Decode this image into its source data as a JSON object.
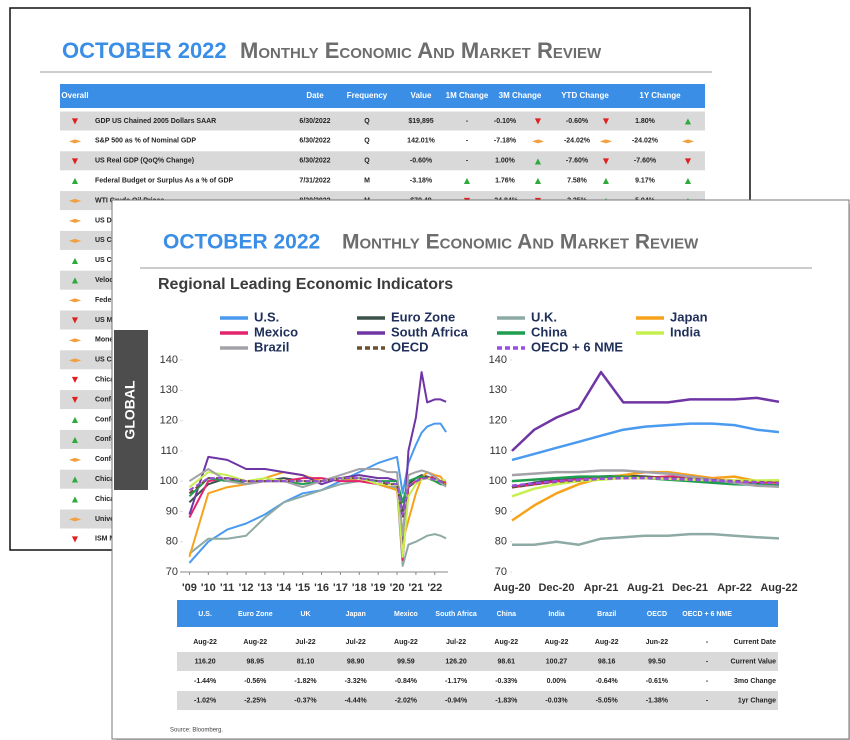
{
  "back_slide": {
    "title": "OCTOBER 2022",
    "subtitle": "Monthly Economic And Market Review",
    "arrow_colors": {
      "▲": "#2eaa3c",
      "▼": "#e02020",
      "◄►": "#f0a040"
    },
    "header": [
      "Overall",
      "Date",
      "Frequency",
      "Value",
      "1M Change",
      "3M Change",
      "YTD Change",
      "1Y Change"
    ],
    "rows": [
      {
        "overall": "▼",
        "name": "GDP US Chained 2005 Dollars SAAR",
        "date": "6/30/2022",
        "frequency": "Q",
        "value": "$19,895",
        "m1": "-",
        "m3": "-0.10%",
        "m3_arrow": "▼",
        "ytd": "-0.60%",
        "ytd_arrow": "▼",
        "y1": "1.80%",
        "y1_arrow": "▲"
      },
      {
        "overall": "◄►",
        "name": "S&P 500 as % of Nominal GDP",
        "date": "6/30/2022",
        "frequency": "Q",
        "value": "142.01%",
        "m1": "-",
        "m3": "-7.18%",
        "m3_arrow": "◄►",
        "ytd": "-24.02%",
        "ytd_arrow": "◄►",
        "y1": "-24.02%",
        "y1_arrow": "◄►"
      },
      {
        "overall": "▼",
        "name": "US Real GDP (QoQ% Change)",
        "date": "6/30/2022",
        "frequency": "Q",
        "value": "-0.60%",
        "m1": "-",
        "m3": "1.00%",
        "m3_arrow": "▲",
        "ytd": "-7.60%",
        "ytd_arrow": "▼",
        "y1": "-7.60%",
        "y1_arrow": "▼"
      },
      {
        "overall": "▲",
        "name": "Federal Budget or Surplus As a % of GDP",
        "date": "7/31/2022",
        "frequency": "M",
        "value": "-3.18%",
        "m1": "▲",
        "m3": "1.76%",
        "m3_arrow": "▲",
        "ytd": "7.58%",
        "ytd_arrow": "▲",
        "y1": "9.17%",
        "y1_arrow": "▲"
      },
      {
        "overall": "◄►",
        "name": "WTI Crude Oil Prices",
        "date": "8/30/2022",
        "frequency": "M",
        "value": "$79.49",
        "m1": "▼",
        "m3": "-24.84%",
        "m3_arrow": "▼",
        "ytd": "3.25%",
        "ytd_arrow": "▲",
        "y1": "5.94%",
        "y1_arrow": "▲"
      },
      {
        "overall": "◄►",
        "name": "US DO"
      },
      {
        "overall": "◄►",
        "name": "US CP"
      },
      {
        "overall": "▲",
        "name": "US CP"
      },
      {
        "overall": "▲",
        "name": "Velocit"
      },
      {
        "overall": "◄►",
        "name": "Federa"
      },
      {
        "overall": "▼",
        "name": "US Mo"
      },
      {
        "overall": "◄►",
        "name": "Money"
      },
      {
        "overall": "◄►",
        "name": "US Ca"
      },
      {
        "overall": "▼",
        "name": "Chicag"
      },
      {
        "overall": "▼",
        "name": "Confe"
      },
      {
        "overall": "▲",
        "name": "Confe"
      },
      {
        "overall": "▲",
        "name": "Confe"
      },
      {
        "overall": "◄►",
        "name": "Confe"
      },
      {
        "overall": "▲",
        "name": "Chicag"
      },
      {
        "overall": "▲",
        "name": "Chicag"
      },
      {
        "overall": "◄►",
        "name": "Univer"
      },
      {
        "overall": "▼",
        "name": "ISM M"
      }
    ]
  },
  "tab": "GLOBAL",
  "front_slide": {
    "title": "OCTOBER 2022",
    "subtitle": "Monthly Economic And Market Review",
    "section_title": "Regional Leading Economic Indicators",
    "table": {
      "header": [
        "U.S.",
        "Euro Zone",
        "UK",
        "Japan",
        "Mexico",
        "South Africa",
        "China",
        "India",
        "Brazil",
        "OECD",
        "OECD + 6 NME"
      ],
      "rows": [
        {
          "cells": [
            "Aug-22",
            "Aug-22",
            "Jul-22",
            "Jul-22",
            "Aug-22",
            "Jul-22",
            "Aug-22",
            "Aug-22",
            "Aug-22",
            "Jun-22",
            "-"
          ],
          "label": "Current Date"
        },
        {
          "cells": [
            "116.20",
            "98.95",
            "81.10",
            "98.90",
            "99.59",
            "126.20",
            "98.61",
            "100.27",
            "98.16",
            "99.50",
            "-"
          ],
          "label": "Current Value"
        },
        {
          "cells": [
            "-1.44%",
            "-0.56%",
            "-1.82%",
            "-3.32%",
            "-0.84%",
            "-1.17%",
            "-0.33%",
            "0.00%",
            "-0.64%",
            "-0.61%",
            "-"
          ],
          "label": "3mo Change"
        },
        {
          "cells": [
            "-1.02%",
            "-2.25%",
            "-0.37%",
            "-4.44%",
            "-2.02%",
            "-0.94%",
            "-1.83%",
            "-0.03%",
            "-5.05%",
            "-1.38%",
            "-"
          ],
          "label": "1yr Change"
        }
      ]
    },
    "source": "Source: Bloomberg."
  },
  "chart_data": [
    {
      "type": "line",
      "x": [
        2009,
        2010,
        2011,
        2012,
        2013,
        2014,
        2015,
        2016,
        2017,
        2018,
        2019,
        2019.5,
        2020,
        2020.3,
        2020.6,
        2021,
        2021.3,
        2021.6,
        2022,
        2022.3,
        2022.6
      ],
      "xlim": [
        2008.5,
        2022.7
      ],
      "xticks": [
        {
          "value": 2009,
          "label": "'09"
        },
        {
          "value": 2010,
          "label": "'10"
        },
        {
          "value": 2011,
          "label": "'11"
        },
        {
          "value": 2012,
          "label": "'12"
        },
        {
          "value": 2013,
          "label": "'13"
        },
        {
          "value": 2014,
          "label": "'14"
        },
        {
          "value": 2015,
          "label": "'15"
        },
        {
          "value": 2016,
          "label": "'16"
        },
        {
          "value": 2017,
          "label": "'17"
        },
        {
          "value": 2018,
          "label": "'18"
        },
        {
          "value": 2019,
          "label": "'19"
        },
        {
          "value": 2020,
          "label": "'20"
        },
        {
          "value": 2021,
          "label": "'21"
        },
        {
          "value": 2022,
          "label": "'22"
        }
      ],
      "ylim": [
        70,
        140
      ],
      "yticks": [
        70,
        80,
        90,
        100,
        110,
        120,
        130,
        140
      ],
      "series": [
        {
          "name": "U.S.",
          "color": "#4a9af0",
          "values": [
            73,
            80,
            84,
            86,
            89,
            93,
            96,
            97,
            100,
            103,
            106,
            107,
            108,
            96,
            106,
            112,
            116,
            118,
            119,
            119,
            116.2
          ]
        },
        {
          "name": "Euro Zone",
          "color": "#3a5249",
          "values": [
            93,
            99,
            101,
            99,
            100,
            101,
            100,
            100,
            101,
            101,
            99,
            98,
            98,
            90,
            99,
            101,
            102,
            101.5,
            100.5,
            99.5,
            98.95
          ]
        },
        {
          "name": "U.K.",
          "color": "#8eaaa4",
          "values": [
            76,
            81,
            81,
            82,
            88,
            93,
            95,
            97,
            99,
            100,
            99,
            98,
            98,
            72,
            79,
            80,
            81,
            82,
            82.5,
            82,
            81.1
          ]
        },
        {
          "name": "Japan",
          "color": "#f7a21b",
          "values": [
            75,
            96,
            98,
            99,
            101,
            103,
            102,
            100,
            101,
            100,
            99,
            98,
            97,
            80,
            87,
            96,
            101,
            103,
            102,
            101.5,
            98.9
          ]
        },
        {
          "name": "Mexico",
          "color": "#e3256f",
          "values": [
            88,
            100,
            101,
            100,
            100,
            100,
            101,
            101,
            100,
            100,
            99,
            99,
            99,
            74,
            98,
            100,
            101,
            101,
            101.5,
            100,
            99.59
          ]
        },
        {
          "name": "South Africa",
          "color": "#6f35a5",
          "values": [
            89,
            108,
            107,
            104,
            104,
            103,
            102,
            99,
            101,
            102,
            101,
            101,
            100,
            78,
            110,
            121,
            136,
            126,
            127,
            127,
            126.2
          ]
        },
        {
          "name": "China",
          "color": "#1e9e4e",
          "values": [
            95,
            101,
            100,
            100,
            100,
            100,
            99,
            100,
            101,
            101,
            100,
            100,
            100,
            93,
            100,
            101,
            101.5,
            101,
            100,
            99,
            98.61
          ]
        },
        {
          "name": "India",
          "color": "#c6ef4f",
          "values": [
            98,
            103,
            102,
            100,
            101,
            100,
            100,
            100,
            101,
            101,
            99,
            99,
            99,
            75,
            95,
            99,
            100.5,
            101,
            100.5,
            100.2,
            100.27
          ]
        },
        {
          "name": "Brazil",
          "color": "#a3a2a8",
          "values": [
            100,
            104,
            100,
            99,
            100,
            100,
            98,
            100,
            102,
            104,
            104,
            103,
            103,
            82,
            102,
            103,
            103.5,
            103,
            101.5,
            99.5,
            98.16
          ]
        },
        {
          "name": "OECD",
          "color": "#6b5030",
          "dash": true,
          "values": [
            96,
            101,
            101,
            100,
            100,
            100,
            100,
            100,
            101,
            101,
            100,
            99,
            99,
            88,
            98,
            99.8,
            100.8,
            101.2,
            100.7,
            100,
            99.5
          ]
        },
        {
          "name": "OECD + 6 NME",
          "color": "#9a4fe0",
          "dash": true,
          "values": [
            97,
            101,
            101,
            100,
            100,
            100,
            100,
            100,
            101,
            101,
            100,
            99.5,
            99,
            89,
            98.5,
            100,
            100.8,
            101,
            100.5,
            99.8,
            99.3
          ]
        }
      ]
    },
    {
      "type": "line",
      "categories": [
        "Aug-20",
        null,
        "Dec-20",
        null,
        "Apr-21",
        null,
        "Aug-21",
        null,
        "Dec-21",
        null,
        "Apr-22",
        null,
        "Aug-22"
      ],
      "ylim": [
        70,
        140
      ],
      "yticks": [
        70,
        80,
        90,
        100,
        110,
        120,
        130,
        140
      ],
      "series": [
        {
          "color": "#4a9af0",
          "values": [
            107,
            109,
            111,
            113,
            115,
            117,
            118,
            118.5,
            119,
            119,
            118.5,
            117,
            116.2
          ]
        },
        {
          "color": "#3a5249",
          "values": [
            98,
            99.5,
            100.5,
            101,
            101.5,
            101.8,
            101.5,
            101,
            100.5,
            100,
            99.5,
            99.2,
            98.95
          ]
        },
        {
          "color": "#8eaaa4",
          "values": [
            79,
            79,
            80,
            79,
            81,
            81.5,
            82,
            82,
            82.5,
            82.5,
            82,
            81.5,
            81.1
          ]
        },
        {
          "color": "#f7a21b",
          "values": [
            87,
            92,
            96,
            99,
            101,
            102,
            103,
            103,
            102,
            101,
            101.5,
            100,
            98.9
          ]
        },
        {
          "color": "#e3256f",
          "values": [
            98,
            99,
            100,
            100.5,
            101,
            101,
            101,
            101.5,
            101.5,
            100.5,
            100,
            99.8,
            99.59
          ]
        },
        {
          "color": "#6f35a5",
          "values": [
            110,
            117,
            121,
            124,
            136,
            126,
            126,
            126,
            127,
            127,
            127,
            127.5,
            126.2
          ]
        },
        {
          "color": "#1e9e4e",
          "values": [
            100,
            100.5,
            101,
            101.5,
            101.5,
            101.5,
            101,
            100.5,
            100,
            99.5,
            99,
            98.8,
            98.61
          ]
        },
        {
          "color": "#c6ef4f",
          "values": [
            95,
            97.5,
            99,
            100,
            100.5,
            101,
            101,
            100.8,
            100.5,
            100.3,
            100.2,
            100.2,
            100.27
          ]
        },
        {
          "color": "#a3a2a8",
          "values": [
            102,
            102.5,
            103,
            103,
            103.5,
            103.5,
            103,
            102.5,
            101.5,
            100.5,
            99.5,
            98.5,
            98.16
          ]
        },
        {
          "color": "#6b5030",
          "dash": true,
          "values": [
            98,
            99,
            99.8,
            100.3,
            100.8,
            101,
            101.2,
            101,
            100.7,
            100.3,
            100,
            99.7,
            99.5
          ]
        },
        {
          "color": "#9a4fe0",
          "dash": true,
          "values": [
            98.5,
            99.3,
            100,
            100.5,
            100.8,
            101,
            101,
            100.8,
            100.5,
            100.2,
            99.8,
            99.6,
            99.3
          ]
        }
      ]
    }
  ]
}
